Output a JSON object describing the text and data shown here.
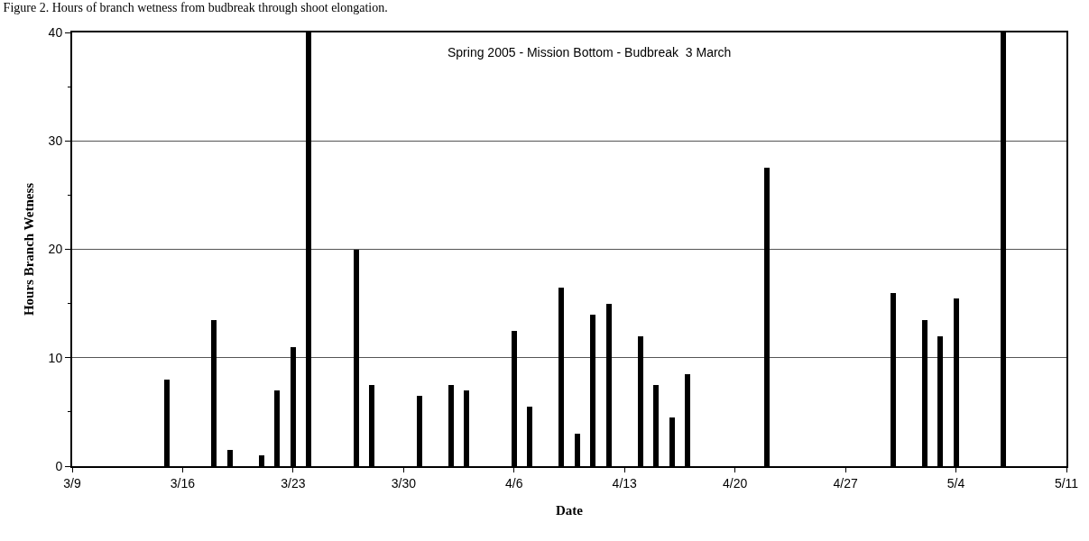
{
  "chart_data": {
    "type": "bar",
    "title": "Figure 2. Hours of branch wetness from budbreak through shoot elongation.",
    "annotations": [
      "Spring 2005 - Mission Bottom - Budbreak  3 March"
    ],
    "xlabel": "Date",
    "ylabel": "Hours Branch Wetness",
    "x": [
      "--03-15",
      "--03-18",
      "--03-19",
      "--03-21",
      "--03-22",
      "--03-23",
      "--03-24",
      "--03-27",
      "--03-28",
      "--03-31",
      "--04-02",
      "--04-03",
      "--04-06",
      "--04-07",
      "--04-09",
      "--04-10",
      "--04-11",
      "--04-12",
      "--04-14",
      "--04-15",
      "--04-16",
      "--04-17",
      "--04-22",
      "--04-30",
      "--05-02",
      "--05-03",
      "--05-04",
      "--05-07"
    ],
    "values": [
      8,
      13.5,
      1.5,
      1,
      7,
      11,
      40,
      20,
      7.5,
      6.5,
      7.5,
      7,
      12.5,
      5.5,
      16.5,
      3,
      14,
      15,
      12,
      7.5,
      4.5,
      8.5,
      27.5,
      16,
      13.5,
      12,
      15.5,
      40
    ],
    "color": "#000000",
    "xlim": [
      "--03-09",
      "--05-11"
    ],
    "xticks": [
      {
        "value": "--03-09",
        "label": "3/9"
      },
      {
        "value": "--03-16",
        "label": "3/16"
      },
      {
        "value": "--03-23",
        "label": "3/23"
      },
      {
        "value": "--03-30",
        "label": "3/30"
      },
      {
        "value": "--04-06",
        "label": "4/6"
      },
      {
        "value": "--04-13",
        "label": "4/13"
      },
      {
        "value": "--04-20",
        "label": "4/20"
      },
      {
        "value": "--04-27",
        "label": "4/27"
      },
      {
        "value": "--05-04",
        "label": "5/4"
      },
      {
        "value": "--05-11",
        "label": "5/11"
      }
    ],
    "ylim": [
      0,
      40
    ],
    "yticks": [
      0,
      {
        "value": 5,
        "label": null
      },
      10,
      {
        "value": 15,
        "label": null
      },
      20,
      {
        "value": 25,
        "label": null
      },
      30,
      {
        "value": 35,
        "label": null
      },
      40
    ],
    "grid": "y"
  }
}
